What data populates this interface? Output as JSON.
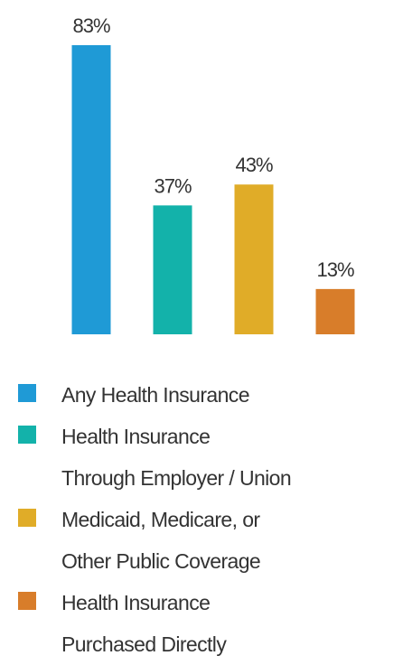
{
  "chart_data": {
    "type": "bar",
    "categories": [
      "Any Health Insurance",
      "Health Insurance\nThrough Employer / Union",
      "Medicaid, Medicare, or\nOther Public Coverage",
      "Health Insurance\nPurchased Directly"
    ],
    "values": [
      83,
      37,
      43,
      13
    ],
    "value_labels": [
      "83%",
      "37%",
      "43%",
      "13%"
    ],
    "colors": [
      "#1f9ad6",
      "#13b2aa",
      "#e0ac28",
      "#d87d2a"
    ]
  }
}
